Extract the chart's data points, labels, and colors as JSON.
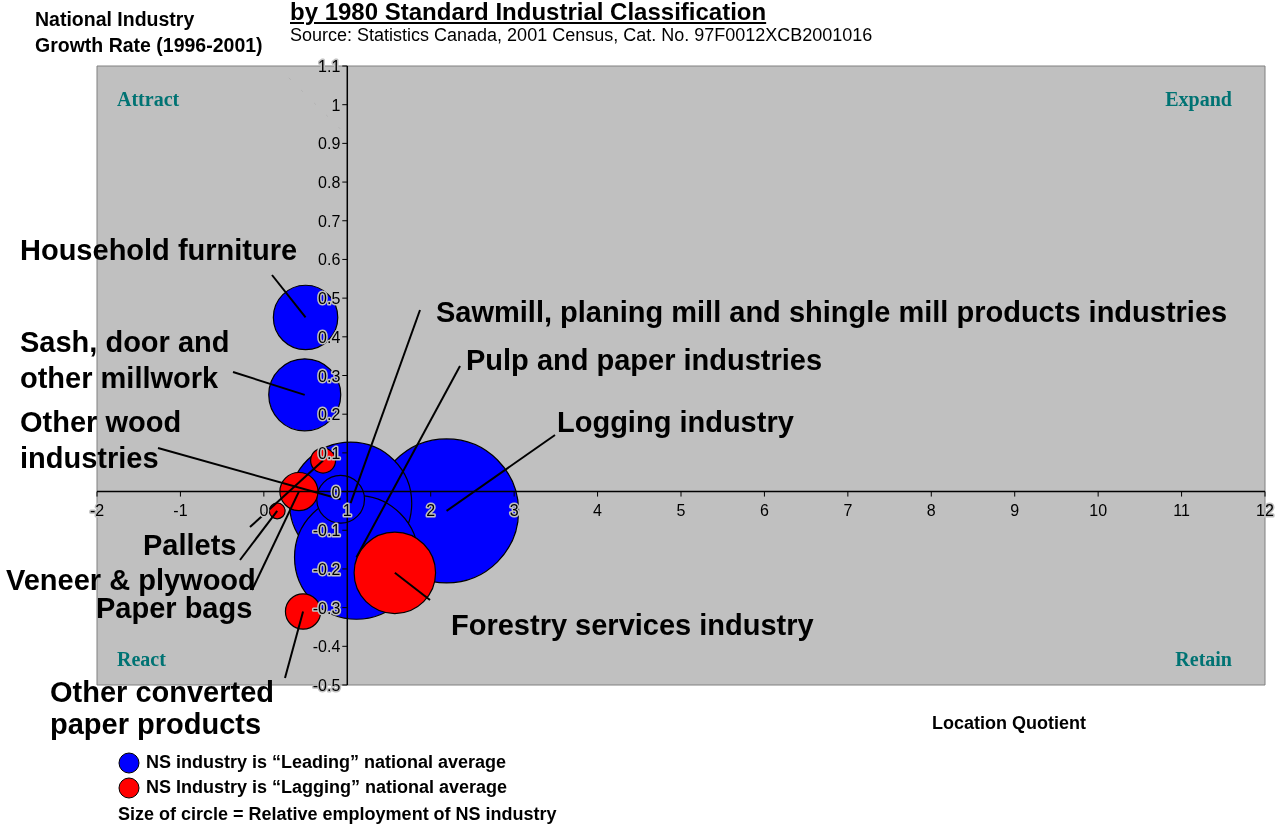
{
  "chart_data": {
    "type": "bubble",
    "title": "by 1980 Standard Industrial Classification",
    "subtitle": "Source: Statistics Canada, 2001 Census, Cat. No. 97F0012XCB2001016",
    "xlabel": "Location Quotient",
    "ylabel": "National Industry Growth Rate (1996-2001)",
    "series": [
      {
        "name": "NS industry is “Leading” national average",
        "color": "#0000ff",
        "x": [
          2.19,
          1.04,
          1.11,
          0.92,
          0.5,
          0.49
        ],
        "values": [
          -0.05,
          -0.03,
          -0.17,
          -0.02,
          0.45,
          0.25
        ],
        "sizes": [
          1,
          0.72,
          0.74,
          0.11,
          0.2,
          0.25
        ]
      },
      {
        "name": "NS Industry is “Lagging” national average",
        "color": "#ff0000",
        "x": [
          1.57,
          0.42,
          0.71,
          0.16,
          0.47
        ],
        "values": [
          -0.21,
          0.0,
          0.08,
          -0.05,
          -0.31
        ],
        "sizes": [
          0.32,
          0.07,
          0.03,
          0.012,
          0.06
        ]
      }
    ],
    "xlim": [
      -2,
      12
    ],
    "xticks": [
      -2,
      -1,
      0,
      1,
      2,
      3,
      4,
      5,
      6,
      7,
      8,
      9,
      10,
      11,
      12
    ],
    "ylim": [
      -0.5,
      1.1
    ],
    "yticks": [
      -0.5,
      -0.4,
      -0.3,
      -0.2,
      -0.1,
      0,
      0.1,
      0.2,
      0.3,
      0.4,
      0.5,
      0.6,
      0.7,
      0.8,
      0.9,
      1,
      1.1
    ],
    "legend": "bottom left",
    "annotations": [
      {
        "text": "Household furniture",
        "x": 0.5,
        "y": 0.45
      },
      {
        "text": "Sash, door and other millwork",
        "x": 0.49,
        "y": 0.25
      },
      {
        "text": "Other wood industries",
        "x": 0.92,
        "y": -0.02
      },
      {
        "text": "Pallets",
        "x": 0.71,
        "y": 0.08
      },
      {
        "text": "Veneer & plywood",
        "x": 0.16,
        "y": -0.05
      },
      {
        "text": "Paper bags",
        "x": 0.42,
        "y": 0.0
      },
      {
        "text": "Other converted paper products",
        "x": 0.47,
        "y": -0.31
      },
      {
        "text": "Sawmill, planing mill and shingle mill products industries",
        "x": 1.04,
        "y": -0.03
      },
      {
        "text": "Pulp and paper industries",
        "x": 1.11,
        "y": -0.17
      },
      {
        "text": "Logging industry",
        "x": 2.19,
        "y": -0.05
      },
      {
        "text": "Forestry services industry",
        "x": 1.57,
        "y": -0.21
      },
      "Attract",
      "Expand",
      "React",
      "Retain",
      "Size of circle = Relative employment of NS industry"
    ]
  }
}
